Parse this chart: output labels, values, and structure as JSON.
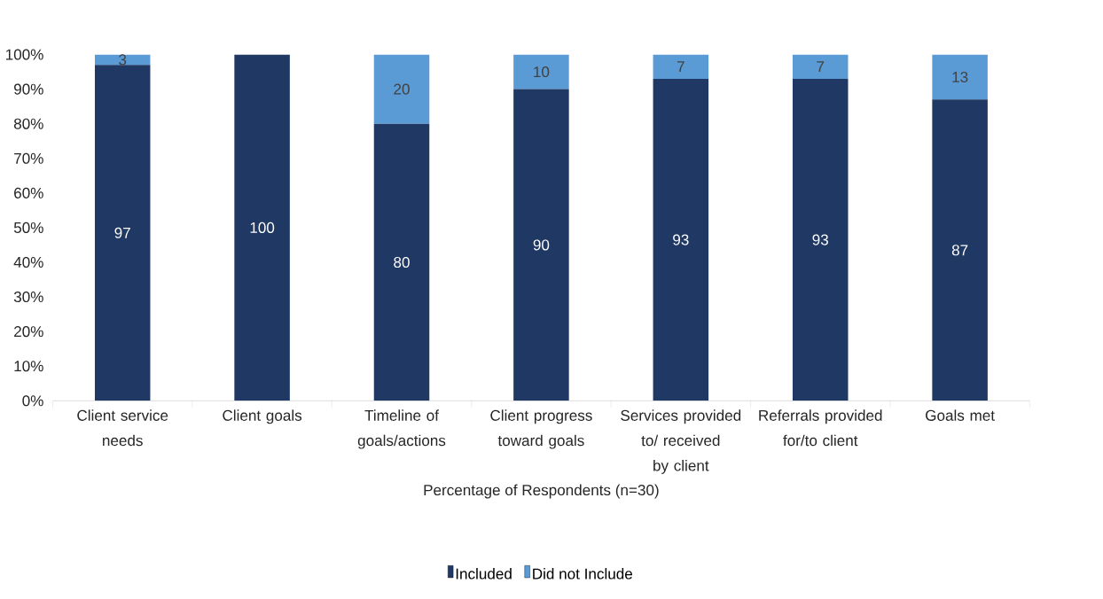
{
  "chart_data": {
    "type": "bar",
    "stacked": true,
    "xlabel": "Percentage of Respondents (n=30)",
    "legend": "bottom",
    "categories": [
      "Client service needs",
      "Client goals",
      "Timeline of goals/actions",
      "Client progress toward goals",
      "Services provided to/ received by client",
      "Referrals provided for/to client",
      "Goals met"
    ],
    "ylim": [
      0,
      100
    ],
    "yticks": [
      {
        "value": 0,
        "label": "0%"
      },
      {
        "value": 10,
        "label": "10%"
      },
      {
        "value": 20,
        "label": "20%"
      },
      {
        "value": 30,
        "label": "30%"
      },
      {
        "value": 40,
        "label": "40%"
      },
      {
        "value": 50,
        "label": "50%"
      },
      {
        "value": 60,
        "label": "60%"
      },
      {
        "value": 70,
        "label": "70%"
      },
      {
        "value": 80,
        "label": "80%"
      },
      {
        "value": 90,
        "label": "90%"
      },
      {
        "value": 100,
        "label": "100%"
      }
    ],
    "series": [
      {
        "name": "Included",
        "color": "#1f3864",
        "values": [
          97,
          100,
          80,
          90,
          93,
          93,
          87
        ],
        "value_labels": [
          "97",
          "100",
          "80",
          "90",
          "93",
          "93",
          "87"
        ]
      },
      {
        "name": "Did not Include",
        "color": "#5b9bd5",
        "values": [
          3,
          0,
          20,
          10,
          7,
          7,
          13
        ],
        "value_labels": [
          "3",
          null,
          "20",
          "10",
          "7",
          "7",
          "13"
        ]
      }
    ]
  }
}
